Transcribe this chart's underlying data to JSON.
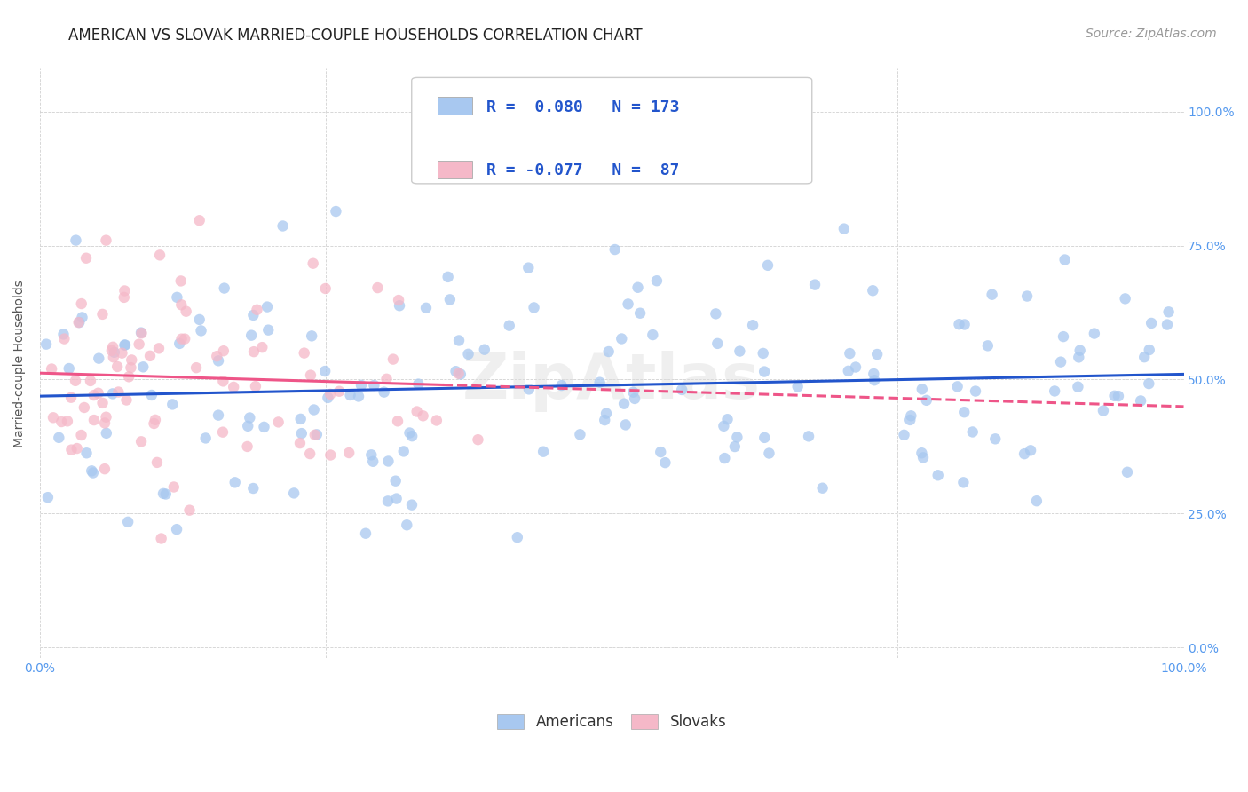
{
  "title": "AMERICAN VS SLOVAK MARRIED-COUPLE HOUSEHOLDS CORRELATION CHART",
  "source": "Source: ZipAtlas.com",
  "ylabel": "Married-couple Households",
  "watermark": "ZipAtlas",
  "r_american": 0.08,
  "n_american": 173,
  "r_slovak": -0.077,
  "n_slovak": 87,
  "color_american": "#A8C8F0",
  "color_slovak": "#F5B8C8",
  "color_american_line": "#2255CC",
  "color_slovak_line": "#EE5588",
  "xlim": [
    0.0,
    1.0
  ],
  "ylim": [
    0.0,
    1.0
  ],
  "xticks": [
    0.0,
    0.25,
    0.5,
    0.75,
    1.0
  ],
  "yticks": [
    0.0,
    0.25,
    0.5,
    0.75,
    1.0
  ],
  "xticklabels": [
    "0.0%",
    "",
    "",
    "",
    "100.0%"
  ],
  "yticklabels_right": [
    "0.0%",
    "25.0%",
    "50.0%",
    "75.0%",
    "100.0%"
  ],
  "seed_american": 42,
  "seed_slovak": 99,
  "background_color": "#FFFFFF",
  "grid_color": "#CCCCCC",
  "title_color": "#222222",
  "tick_color": "#5599EE",
  "title_fontsize": 12,
  "axis_label_fontsize": 10,
  "tick_fontsize": 10,
  "legend_fontsize": 12,
  "source_fontsize": 10,
  "watermark_fontsize": 52,
  "watermark_color": "#DDDDDD",
  "scatter_alpha": 0.75,
  "scatter_size": 80
}
